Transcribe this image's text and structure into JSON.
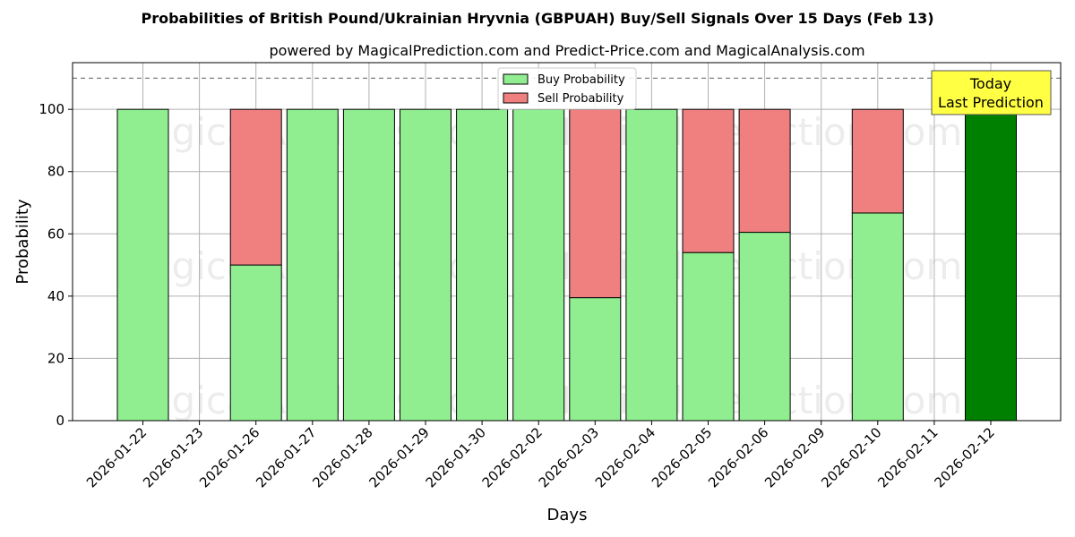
{
  "chart_data": {
    "type": "bar",
    "stacked": true,
    "title": "Probabilities of British Pound/Ukrainian Hryvnia (GBPUAH) Buy/Sell Signals Over 15 Days (Feb 13)",
    "subtitle": "powered by MagicalPrediction.com and Predict-Price.com and MagicalAnalysis.com",
    "xlabel": "Days",
    "ylabel": "Probability",
    "ylim": [
      0,
      115
    ],
    "yticks": [
      0,
      20,
      40,
      60,
      80,
      100
    ],
    "grid": true,
    "legend_position": "top-center",
    "reference_line": 110,
    "categories": [
      "2026-01-22",
      "2026-01-23",
      "2026-01-26",
      "2026-01-27",
      "2026-01-28",
      "2026-01-29",
      "2026-01-30",
      "2026-02-02",
      "2026-02-03",
      "2026-02-04",
      "2026-02-05",
      "2026-02-06",
      "2026-02-09",
      "2026-02-10",
      "2026-02-11",
      "2026-02-12"
    ],
    "series": [
      {
        "name": "Buy Probability",
        "color": "#90ee90",
        "values": [
          100,
          null,
          50,
          100,
          100,
          100,
          100,
          100,
          39.5,
          100,
          54,
          60.5,
          null,
          66.7,
          null,
          100
        ]
      },
      {
        "name": "Sell Probability",
        "color": "#f08080",
        "values": [
          0,
          null,
          50,
          0,
          0,
          0,
          0,
          0,
          60.5,
          0,
          46,
          39.5,
          null,
          33.3,
          null,
          0
        ]
      }
    ],
    "highlight_color": "#008000",
    "annotation": {
      "lines": [
        "Today",
        "Last Prediction"
      ],
      "target": "2026-02-12",
      "bg": "#ffff44"
    },
    "watermarks": [
      "MagicalAnalysis.com",
      "MagicalPrediction.com"
    ]
  }
}
